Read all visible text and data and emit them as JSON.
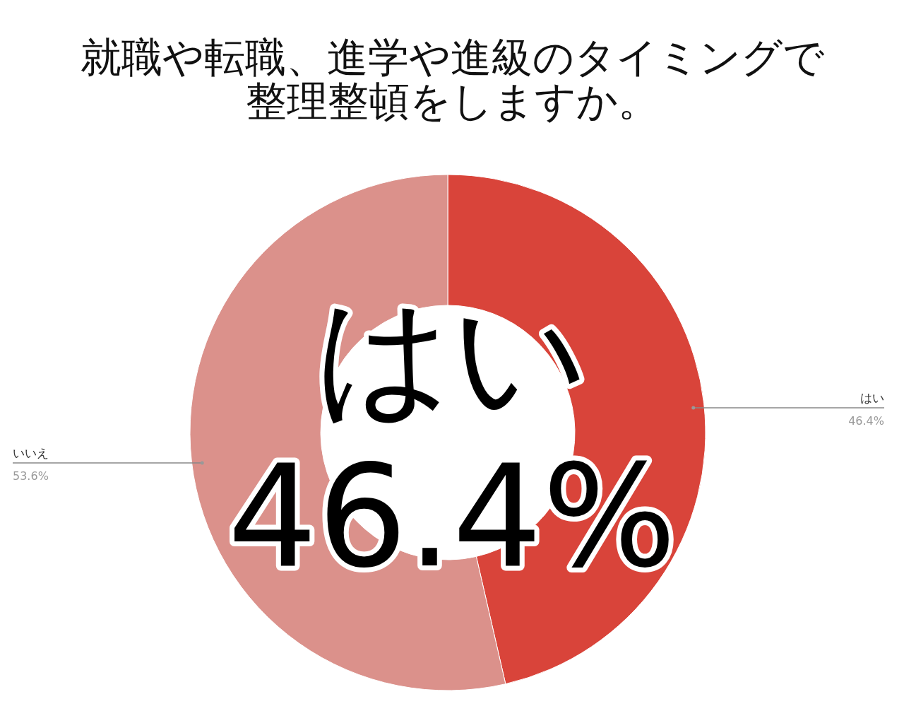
{
  "chart_data": {
    "type": "donut",
    "title": "就職や転職、進学や進級のタイミングで整理整頓をしますか。",
    "categories": [
      "はい",
      "いいえ"
    ],
    "values": [
      46.4,
      53.6
    ],
    "colors": [
      "#d9443a",
      "#db918b"
    ],
    "value_labels": [
      "46.4%",
      "53.6%"
    ],
    "annotations": [
      "はい",
      "46.4%"
    ]
  }
}
